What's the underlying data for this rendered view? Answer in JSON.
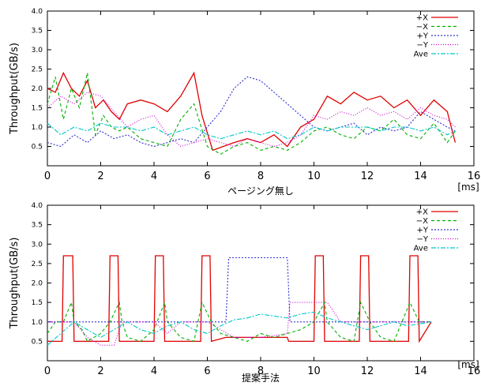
{
  "chart_data": [
    {
      "type": "line",
      "xlabel": "ページング無し",
      "ylabel": "Throughput(GB/s)",
      "unit": "[ms]",
      "xlim": [
        0,
        16
      ],
      "ylim": [
        0,
        4.0
      ],
      "xticks": [
        "0",
        "2",
        "4",
        "6",
        "8",
        "10",
        "12",
        "14",
        "16"
      ],
      "yticks": [
        "0.5",
        "1.0",
        "1.5",
        "2.0",
        "2.5",
        "3.0",
        "3.5",
        "4.0"
      ],
      "series": [
        {
          "name": "+X",
          "color": "#e00000",
          "dash": "",
          "x": [
            0,
            0.3,
            0.6,
            0.9,
            1.2,
            1.5,
            1.8,
            2.1,
            2.4,
            2.7,
            3.0,
            3.5,
            4.0,
            4.5,
            5.0,
            5.5,
            5.8,
            6.2,
            6.6,
            7.0,
            7.5,
            8.0,
            8.5,
            9.0,
            9.5,
            10.0,
            10.5,
            11.0,
            11.5,
            12.0,
            12.5,
            13.0,
            13.5,
            14.0,
            14.5,
            15.0,
            15.3
          ],
          "y": [
            2.0,
            1.9,
            2.4,
            2.0,
            1.8,
            2.2,
            1.5,
            1.7,
            1.4,
            1.2,
            1.6,
            1.7,
            1.6,
            1.4,
            1.8,
            2.4,
            1.3,
            0.4,
            0.5,
            0.6,
            0.7,
            0.6,
            0.8,
            0.5,
            1.0,
            1.2,
            1.8,
            1.6,
            1.9,
            1.7,
            1.8,
            1.5,
            1.7,
            1.3,
            1.7,
            1.4,
            0.6
          ]
        },
        {
          "name": "−X",
          "color": "#00b000",
          "dash": "4,3",
          "x": [
            0,
            0.3,
            0.6,
            0.9,
            1.2,
            1.5,
            1.8,
            2.1,
            2.4,
            2.7,
            3.0,
            3.5,
            4.0,
            4.5,
            5.0,
            5.5,
            6.0,
            6.5,
            7.0,
            7.5,
            8.0,
            8.5,
            9.0,
            9.5,
            10.0,
            10.5,
            11.0,
            11.5,
            12.0,
            12.5,
            13.0,
            13.5,
            14.0,
            14.5,
            15.0,
            15.3
          ],
          "y": [
            1.6,
            2.3,
            1.2,
            2.0,
            1.5,
            2.4,
            0.8,
            1.3,
            1.0,
            0.9,
            1.0,
            0.7,
            0.6,
            0.5,
            1.2,
            1.6,
            0.5,
            0.3,
            0.5,
            0.6,
            0.4,
            0.5,
            0.4,
            0.6,
            0.9,
            1.0,
            0.8,
            0.7,
            1.0,
            0.9,
            1.2,
            0.8,
            0.7,
            1.1,
            0.6,
            0.9
          ]
        },
        {
          "name": "+Y",
          "color": "#3030d0",
          "dash": "2,2",
          "x": [
            0,
            0.5,
            1.0,
            1.5,
            2.0,
            2.5,
            3.0,
            3.5,
            4.0,
            4.5,
            5.0,
            5.5,
            6.0,
            6.5,
            7.0,
            7.5,
            8.0,
            8.5,
            9.0,
            9.5,
            10.0,
            10.5,
            11.0,
            11.5,
            12.0,
            12.5,
            13.0,
            13.5,
            14.0,
            14.5,
            15.0,
            15.3
          ],
          "y": [
            0.6,
            0.5,
            0.8,
            0.6,
            0.9,
            0.7,
            0.8,
            0.6,
            0.5,
            0.6,
            0.7,
            0.6,
            1.0,
            1.4,
            2.0,
            2.3,
            2.2,
            1.9,
            1.6,
            1.3,
            1.0,
            0.9,
            1.0,
            1.1,
            0.8,
            1.0,
            0.9,
            1.0,
            1.4,
            1.2,
            1.0,
            0.9
          ]
        },
        {
          "name": "−Y",
          "color": "#d000d0",
          "dash": "1,2",
          "x": [
            0,
            0.5,
            1.0,
            1.5,
            2.0,
            2.5,
            3.0,
            3.5,
            4.0,
            4.5,
            5.0,
            5.5,
            6.0,
            6.5,
            7.0,
            7.5,
            8.0,
            8.5,
            9.0,
            9.5,
            10.0,
            10.5,
            11.0,
            11.5,
            12.0,
            12.5,
            13.0,
            13.5,
            14.0,
            14.5,
            15.0,
            15.3
          ],
          "y": [
            1.5,
            1.8,
            1.6,
            1.9,
            1.8,
            1.4,
            1.0,
            1.2,
            1.3,
            0.8,
            0.5,
            0.6,
            0.7,
            0.6,
            0.5,
            0.7,
            0.6,
            0.5,
            0.6,
            0.8,
            1.3,
            1.2,
            1.4,
            1.3,
            1.5,
            1.3,
            1.4,
            1.2,
            1.5,
            1.3,
            1.2,
            1.0
          ]
        },
        {
          "name": "Ave",
          "color": "#00c8c8",
          "dash": "6,2,2,2",
          "x": [
            0,
            0.5,
            1.0,
            1.5,
            2.0,
            2.5,
            3.0,
            3.5,
            4.0,
            4.5,
            5.0,
            5.5,
            6.0,
            6.5,
            7.0,
            7.5,
            8.0,
            8.5,
            9.0,
            9.5,
            10.0,
            10.5,
            11.0,
            11.5,
            12.0,
            12.5,
            13.0,
            13.5,
            14.0,
            14.5,
            15.0,
            15.3
          ],
          "y": [
            1.1,
            0.8,
            1.0,
            0.9,
            1.1,
            1.0,
            1.0,
            0.9,
            1.0,
            0.8,
            0.9,
            1.0,
            0.8,
            0.7,
            0.8,
            0.9,
            0.8,
            0.9,
            0.7,
            0.8,
            1.0,
            0.9,
            1.0,
            1.0,
            1.0,
            0.9,
            1.0,
            1.0,
            0.9,
            1.0,
            0.8,
            0.9
          ]
        }
      ],
      "legend": "top-right"
    },
    {
      "type": "line",
      "xlabel": "提案手法",
      "ylabel": "Throughput(GB/s)",
      "unit": "[ms]",
      "xlim": [
        0,
        16
      ],
      "ylim": [
        0,
        4.0
      ],
      "xticks": [
        "0",
        "2",
        "4",
        "6",
        "8",
        "10",
        "12",
        "14",
        "16"
      ],
      "yticks": [
        "0.5",
        "1.0",
        "1.5",
        "2.0",
        "2.5",
        "3.0",
        "3.5",
        "4.0"
      ],
      "series": [
        {
          "name": "+X",
          "color": "#e00000",
          "dash": "",
          "x": [
            0,
            0.55,
            0.6,
            0.95,
            1.0,
            2.3,
            2.35,
            2.65,
            2.7,
            4.0,
            4.05,
            4.35,
            4.4,
            5.75,
            5.8,
            6.1,
            6.15,
            6.7,
            9.0,
            9.05,
            10.0,
            10.05,
            10.35,
            10.4,
            11.7,
            11.75,
            12.05,
            12.1,
            13.55,
            13.6,
            13.9,
            13.95,
            14.4
          ],
          "y": [
            0.5,
            0.5,
            2.7,
            2.7,
            0.5,
            0.5,
            2.7,
            2.7,
            0.5,
            0.5,
            2.7,
            2.7,
            0.5,
            0.5,
            2.7,
            2.7,
            0.5,
            0.6,
            0.6,
            0.5,
            0.5,
            2.7,
            2.7,
            0.5,
            0.5,
            2.7,
            2.7,
            0.5,
            0.5,
            2.7,
            2.7,
            0.5,
            1.0
          ]
        },
        {
          "name": "−X",
          "color": "#00b000",
          "dash": "4,3",
          "x": [
            0,
            0.3,
            0.6,
            0.9,
            1.0,
            1.3,
            1.5,
            2.0,
            2.35,
            2.7,
            2.8,
            3.0,
            3.5,
            4.0,
            4.4,
            4.5,
            5.0,
            5.5,
            5.8,
            6.15,
            6.5,
            7.0,
            7.5,
            8.0,
            8.5,
            9.0,
            9.5,
            10.0,
            10.4,
            10.5,
            11.0,
            11.5,
            11.75,
            12.1,
            12.5,
            13.0,
            13.6,
            13.95,
            14.4
          ],
          "y": [
            0.7,
            1.0,
            1.0,
            1.5,
            1.0,
            0.8,
            0.5,
            0.7,
            1.0,
            1.5,
            1.0,
            0.6,
            0.5,
            0.8,
            1.5,
            1.0,
            0.6,
            0.5,
            1.5,
            1.0,
            0.7,
            0.6,
            0.5,
            0.7,
            0.6,
            0.7,
            0.8,
            1.0,
            1.5,
            1.0,
            0.6,
            0.5,
            1.5,
            1.0,
            0.6,
            0.5,
            1.5,
            1.0,
            1.0
          ]
        },
        {
          "name": "+Y",
          "color": "#3030d0",
          "dash": "2,2",
          "x": [
            0,
            1.5,
            3.0,
            4.5,
            6.0,
            6.7,
            6.8,
            9.0,
            9.1,
            10.0,
            11.5,
            13.0,
            14.4
          ],
          "y": [
            1.0,
            1.0,
            1.0,
            1.0,
            1.0,
            1.0,
            2.65,
            2.65,
            1.0,
            1.0,
            1.0,
            1.0,
            1.0
          ]
        },
        {
          "name": "−Y",
          "color": "#d000d0",
          "dash": "1,2",
          "x": [
            0,
            1.0,
            1.5,
            2.0,
            2.5,
            2.8,
            3.0,
            4.0,
            4.5,
            5.0,
            6.0,
            7.0,
            8.0,
            9.0,
            9.1,
            10.0,
            10.5,
            11.0,
            12.0,
            13.0,
            14.4
          ],
          "y": [
            1.0,
            1.0,
            0.6,
            0.4,
            0.4,
            1.0,
            1.0,
            1.0,
            0.7,
            1.0,
            1.0,
            0.6,
            0.6,
            0.7,
            1.5,
            1.5,
            1.5,
            1.0,
            1.0,
            1.0,
            1.0
          ]
        },
        {
          "name": "Ave",
          "color": "#00c8c8",
          "dash": "6,2,2,2",
          "x": [
            0,
            0.5,
            1.0,
            1.5,
            2.0,
            2.5,
            3.0,
            3.5,
            4.0,
            4.5,
            5.0,
            5.5,
            6.0,
            6.5,
            7.0,
            7.5,
            8.0,
            8.5,
            9.0,
            9.5,
            10.0,
            10.5,
            11.0,
            11.5,
            12.0,
            12.5,
            13.0,
            13.5,
            14.0,
            14.4
          ],
          "y": [
            0.4,
            0.7,
            1.0,
            0.8,
            0.6,
            0.8,
            1.0,
            0.8,
            0.7,
            0.9,
            1.0,
            0.8,
            0.7,
            0.9,
            1.05,
            1.1,
            1.2,
            1.15,
            1.1,
            1.2,
            1.25,
            1.1,
            1.0,
            0.9,
            0.8,
            0.9,
            1.0,
            0.9,
            0.95,
            1.0
          ]
        }
      ],
      "legend": "top-right"
    }
  ]
}
